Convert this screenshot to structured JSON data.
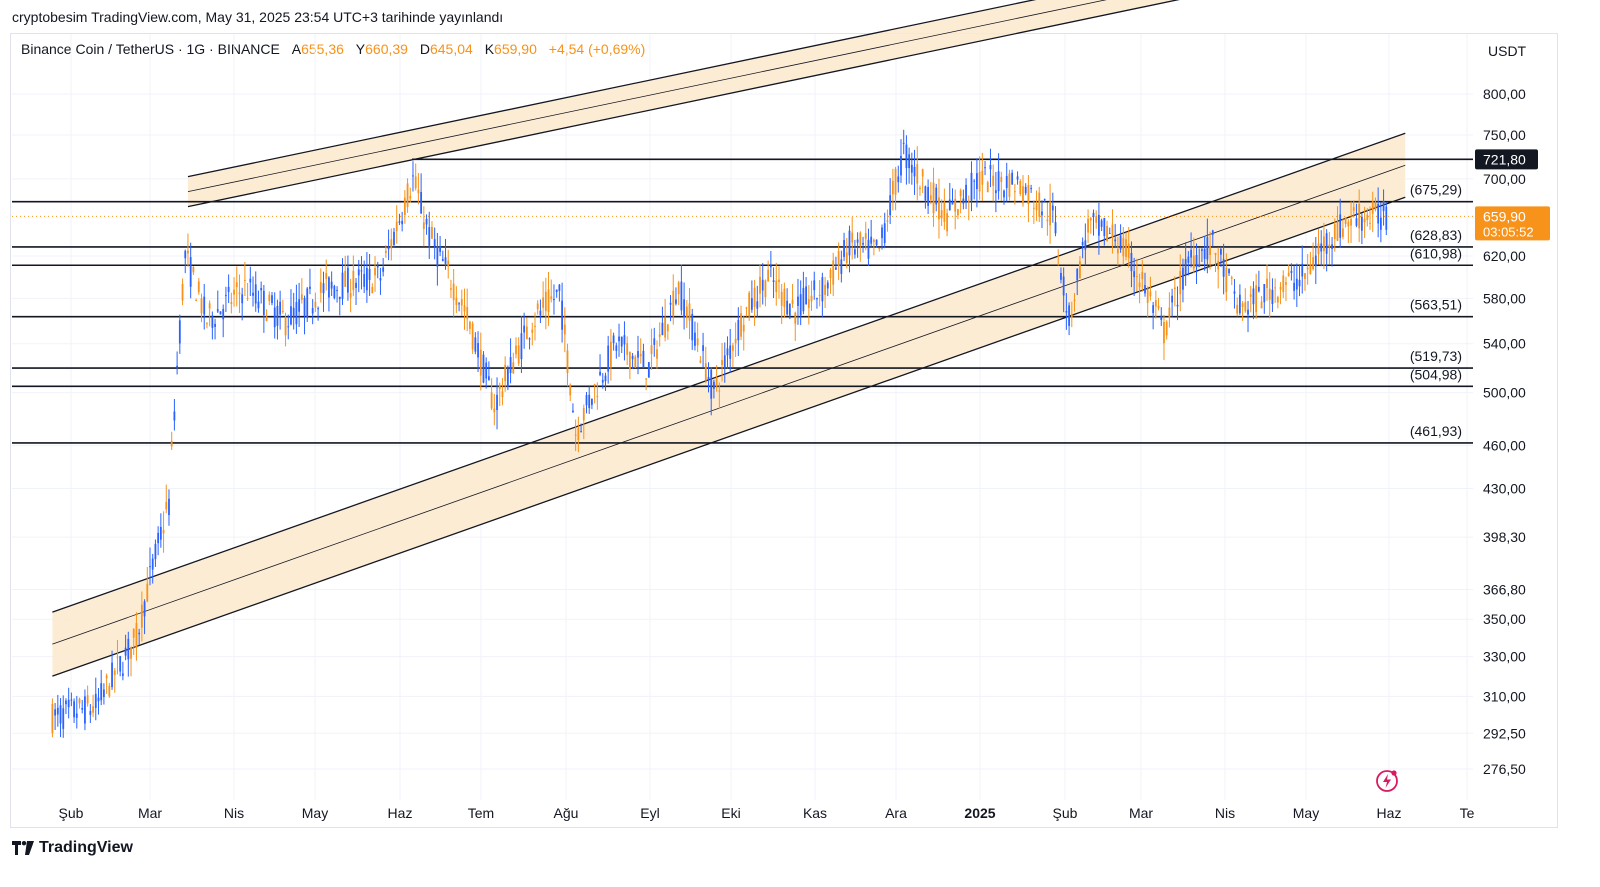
{
  "caption": "cryptobesim TradingView.com, May 31, 2025 23:54 UTC+3 tarihinde yayınlandı",
  "legend": {
    "symbol": "Binance Coin / TetherUS · 1G · BINANCE",
    "open_label": "A",
    "open": "655,36",
    "high_label": "Y",
    "high": "660,39",
    "low_label": "D",
    "low": "645,04",
    "close_label": "K",
    "close": "659,90",
    "change": "+4,54 (+0,69%)"
  },
  "currency": "USDT",
  "brand": "TradingView",
  "colors": {
    "up": "#f7931a",
    "down": "#2962ff",
    "channel_fill": "#fde9cc",
    "last_price_bg": "#f7931a",
    "label_bg_dark": "#131722"
  },
  "chart_data": {
    "type": "candlestick",
    "symbol": "BNB/USDT",
    "timeframe": "1D",
    "x_ticks": [
      "Şub",
      "Mar",
      "Nis",
      "May",
      "Haz",
      "Tem",
      "Ağu",
      "Eyl",
      "Eki",
      "Kas",
      "Ara",
      "2025",
      "Şub",
      "Mar",
      "Nis",
      "May",
      "Haz",
      "Te"
    ],
    "y_ticks": [
      "800,00",
      "750,00",
      "700,00",
      "620,00",
      "580,00",
      "540,00",
      "500,00",
      "460,00",
      "430,00",
      "398,30",
      "366,80",
      "350,00",
      "330,00",
      "310,00",
      "292,50",
      "276,50"
    ],
    "y_scale": "log",
    "price_badge": {
      "value": "721,80"
    },
    "last_price": {
      "value": "659,90",
      "countdown": "03:05:52"
    },
    "levels": [
      {
        "label": "(675,29)",
        "value": 675.29
      },
      {
        "label": "(628,83)",
        "value": 628.83
      },
      {
        "label": "(610,98)",
        "value": 610.98
      },
      {
        "label": "(563,51)",
        "value": 563.51
      },
      {
        "label": "(519,73)",
        "value": 519.73
      },
      {
        "label": "(504,98)",
        "value": 504.98
      },
      {
        "label": "(461,93)",
        "value": 461.93
      }
    ],
    "horizontal_line_top": 721.8,
    "channels": [
      {
        "name": "rising-channel-lower",
        "from": [
          "2024-01-25",
          320
        ],
        "to": [
          "2025-06-07",
          680
        ]
      },
      {
        "name": "rising-channel-upper",
        "from": [
          "2024-03-15",
          670
        ],
        "to": [
          "2025-06-07",
          1000
        ]
      }
    ],
    "price_path": [
      [
        "2024-01-25",
        300
      ],
      [
        "2024-02-10",
        305
      ],
      [
        "2024-02-25",
        340
      ],
      [
        "2024-03-08",
        420
      ],
      [
        "2024-03-14",
        620
      ],
      [
        "2024-03-22",
        560
      ],
      [
        "2024-04-05",
        590
      ],
      [
        "2024-04-20",
        560
      ],
      [
        "2024-05-05",
        590
      ],
      [
        "2024-05-25",
        600
      ],
      [
        "2024-06-06",
        700
      ],
      [
        "2024-06-12",
        640
      ],
      [
        "2024-06-25",
        570
      ],
      [
        "2024-07-06",
        490
      ],
      [
        "2024-07-20",
        560
      ],
      [
        "2024-07-30",
        585
      ],
      [
        "2024-08-05",
        470
      ],
      [
        "2024-08-20",
        540
      ],
      [
        "2024-09-01",
        520
      ],
      [
        "2024-09-12",
        590
      ],
      [
        "2024-09-25",
        500
      ],
      [
        "2024-10-05",
        560
      ],
      [
        "2024-10-15",
        600
      ],
      [
        "2024-10-25",
        570
      ],
      [
        "2024-11-05",
        590
      ],
      [
        "2024-11-14",
        630
      ],
      [
        "2024-11-25",
        625
      ],
      [
        "2024-12-04",
        730
      ],
      [
        "2024-12-10",
        700
      ],
      [
        "2024-12-20",
        660
      ],
      [
        "2025-01-01",
        700
      ],
      [
        "2025-01-15",
        695
      ],
      [
        "2025-01-28",
        660
      ],
      [
        "2025-02-03",
        560
      ],
      [
        "2025-02-10",
        650
      ],
      [
        "2025-02-20",
        640
      ],
      [
        "2025-03-01",
        600
      ],
      [
        "2025-03-10",
        550
      ],
      [
        "2025-03-20",
        620
      ],
      [
        "2025-03-28",
        630
      ],
      [
        "2025-04-07",
        570
      ],
      [
        "2025-04-20",
        590
      ],
      [
        "2025-05-01",
        600
      ],
      [
        "2025-05-10",
        640
      ],
      [
        "2025-05-20",
        660
      ],
      [
        "2025-05-31",
        660
      ]
    ]
  }
}
